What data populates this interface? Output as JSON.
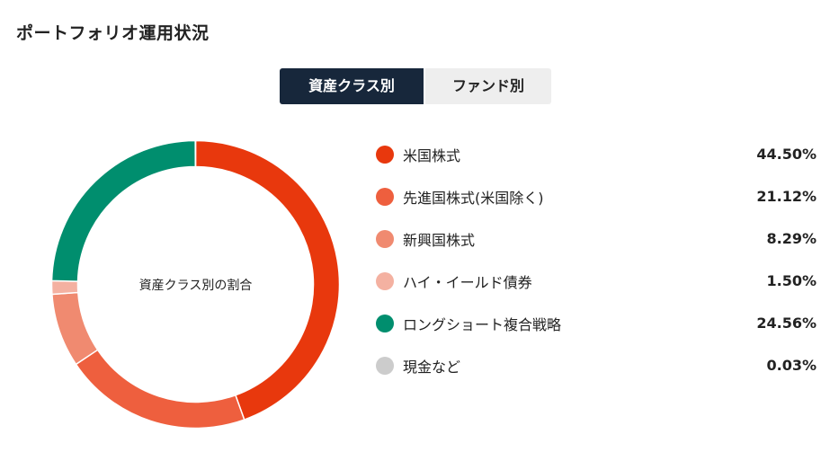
{
  "header": {
    "title": "ポートフォリオ運用状況"
  },
  "tabs": [
    {
      "label": "資産クラス別",
      "active": true
    },
    {
      "label": "ファンド別",
      "active": false
    }
  ],
  "chart_data": {
    "type": "pie",
    "variant": "donut",
    "center_label": "資産クラス別の割合",
    "categories": [
      "米国株式",
      "先進国株式(米国除く)",
      "新興国株式",
      "ハイ・イールド債券",
      "ロングショート複合戦略",
      "現金など"
    ],
    "values": [
      44.5,
      21.12,
      8.29,
      1.5,
      24.56,
      0.03
    ],
    "value_labels": [
      "44.50%",
      "21.12%",
      "8.29%",
      "1.50%",
      "24.56%",
      "0.03%"
    ],
    "colors": [
      "#e8380d",
      "#ee5f3e",
      "#f08a70",
      "#f4b1a1",
      "#008e6e",
      "#cccccc"
    ],
    "unit": "%",
    "legend_position": "right"
  }
}
